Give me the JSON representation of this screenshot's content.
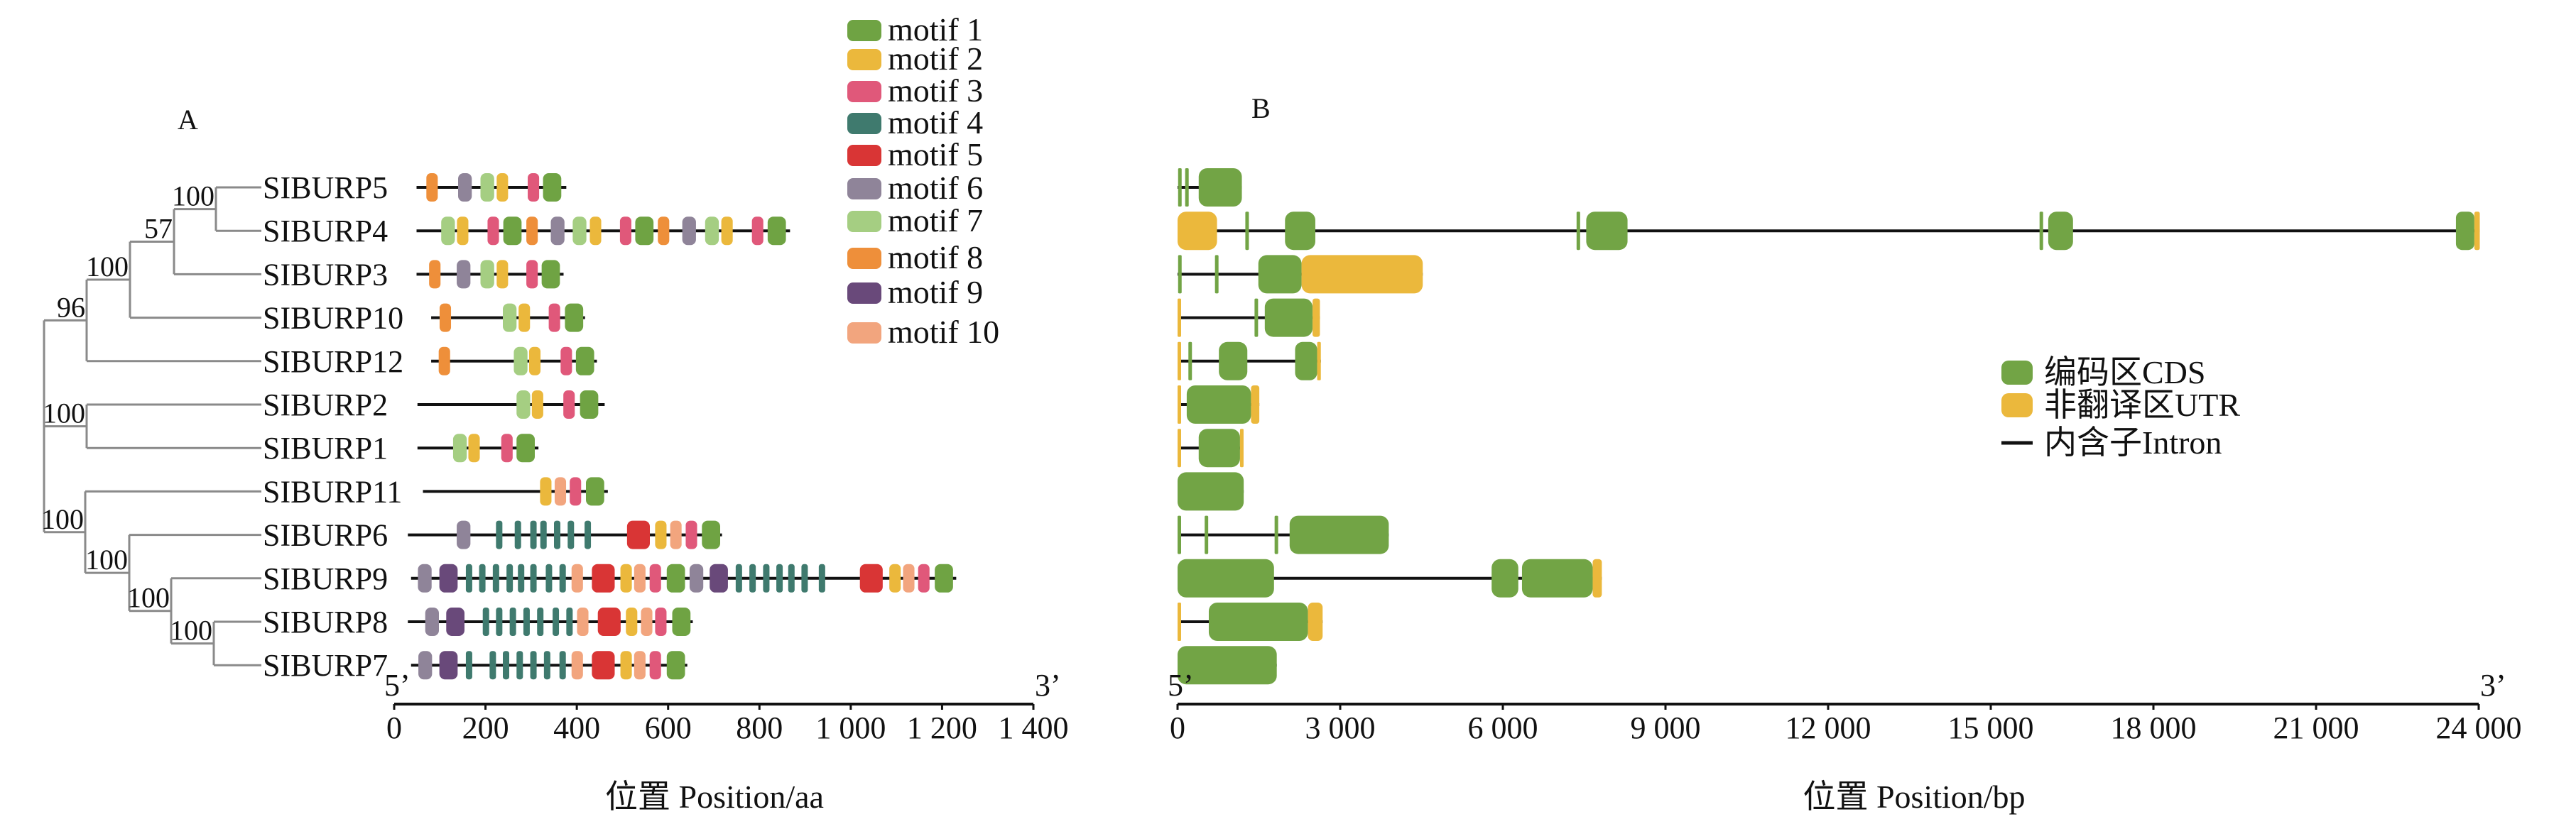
{
  "panel_a_label": "A",
  "panel_b_label": "B",
  "motif_legend": [
    {
      "label": "motif 1",
      "color": "#6fa343",
      "width_aa": 40
    },
    {
      "label": "motif 2",
      "color": "#ebb83c",
      "width_aa": 25
    },
    {
      "label": "motif 3",
      "color": "#e0587a",
      "width_aa": 25
    },
    {
      "label": "motif 4",
      "color": "#3f7a6e",
      "width_aa": 14
    },
    {
      "label": "motif 5",
      "color": "#d93535",
      "width_aa": 50
    },
    {
      "label": "motif 6",
      "color": "#8f8499",
      "width_aa": 30
    },
    {
      "label": "motif 7",
      "color": "#a5ce82",
      "width_aa": 30
    },
    {
      "label": "motif 8",
      "color": "#ee8f3a",
      "width_aa": 25
    },
    {
      "label": "motif 9",
      "color": "#69497a",
      "width_aa": 40
    },
    {
      "label": "motif 10",
      "color": "#f2a57e",
      "width_aa": 25
    }
  ],
  "gene_legend": [
    {
      "label": "编码区CDS",
      "type": "CDS",
      "color": "#72a445"
    },
    {
      "label": "非翻译区UTR",
      "type": "UTR",
      "color": "#ebb83c"
    },
    {
      "label": "内含子Intron",
      "type": "intron",
      "color": "#111111"
    }
  ],
  "tree": {
    "leaves": [
      "SIBURP5",
      "SIBURP4",
      "SIBURP3",
      "SIBURP10",
      "SIBURP12",
      "SIBURP2",
      "SIBURP1",
      "SIBURP11",
      "SIBURP6",
      "SIBURP9",
      "SIBURP8",
      "SIBURP7"
    ],
    "bootstrap": [
      "100",
      "57",
      "100",
      "96",
      "100",
      "100",
      "100",
      "100",
      "100"
    ]
  },
  "axis_a": {
    "start_label": "5’",
    "end_label": "3’",
    "min": 0,
    "max": 1400,
    "ticks": [
      0,
      200,
      400,
      600,
      800,
      1000,
      1200,
      1400
    ],
    "tick_labels": [
      "0",
      "200",
      "400",
      "600",
      "800",
      "1 000",
      "1 200",
      "1 400"
    ],
    "title": "位置 Position/aa"
  },
  "axis_b": {
    "start_label": "5’",
    "end_label": "3’",
    "min": 0,
    "max": 24000,
    "ticks": [
      0,
      3000,
      6000,
      9000,
      12000,
      15000,
      18000,
      21000,
      24000
    ],
    "tick_labels": [
      "0",
      "3 000",
      "6 000",
      "9 000",
      "12 000",
      "15 000",
      "18 000",
      "21 000",
      "24 000"
    ],
    "title": "位置 Position/bp"
  },
  "chart_data": [
    {
      "type": "motif-diagram",
      "xlabel": "位置 Position/aa",
      "xlim": [
        0,
        1400
      ],
      "proteins": [
        {
          "name": "SIBURP5",
          "span": [
            49,
            377
          ],
          "motifs": [
            [
              8,
              83
            ],
            [
              6,
              155
            ],
            [
              7,
              204
            ],
            [
              2,
              237
            ],
            [
              3,
              305
            ],
            [
              1,
              346
            ]
          ]
        },
        {
          "name": "SIBURP4",
          "span": [
            49,
            867
          ],
          "motifs": [
            [
              7,
              118
            ],
            [
              2,
              150
            ],
            [
              3,
              217
            ],
            [
              1,
              259
            ],
            [
              8,
              302
            ],
            [
              6,
              358
            ],
            [
              7,
              406
            ],
            [
              2,
              441
            ],
            [
              3,
              507
            ],
            [
              1,
              548
            ],
            [
              8,
              590
            ],
            [
              6,
              646
            ],
            [
              7,
              696
            ],
            [
              2,
              729
            ],
            [
              3,
              796
            ],
            [
              1,
              838
            ]
          ]
        },
        {
          "name": "SIBURP3",
          "span": [
            49,
            371
          ],
          "motifs": [
            [
              8,
              89
            ],
            [
              6,
              152
            ],
            [
              7,
              204
            ],
            [
              2,
              237
            ],
            [
              3,
              302
            ],
            [
              1,
              343
            ]
          ]
        },
        {
          "name": "SIBURP10",
          "span": [
            81,
            418
          ],
          "motifs": [
            [
              8,
              112
            ],
            [
              7,
              253
            ],
            [
              2,
              285
            ],
            [
              3,
              351
            ],
            [
              1,
              394
            ]
          ]
        },
        {
          "name": "SIBURP12",
          "span": [
            81,
            444
          ],
          "motifs": [
            [
              8,
              110
            ],
            [
              7,
              277
            ],
            [
              2,
              308
            ],
            [
              3,
              377
            ],
            [
              1,
              418
            ]
          ]
        },
        {
          "name": "SIBURP2",
          "span": [
            51,
            461
          ],
          "motifs": [
            [
              7,
              283
            ],
            [
              2,
              314
            ],
            [
              3,
              383
            ],
            [
              1,
              427
            ]
          ]
        },
        {
          "name": "SIBURP1",
          "span": [
            51,
            316
          ],
          "motifs": [
            [
              7,
              144
            ],
            [
              2,
              175
            ],
            [
              3,
              247
            ],
            [
              1,
              288
            ]
          ]
        },
        {
          "name": "SIBURP11",
          "span": [
            63,
            468
          ],
          "motifs": [
            [
              2,
              332
            ],
            [
              10,
              364
            ],
            [
              3,
              397
            ],
            [
              1,
              440
            ]
          ]
        },
        {
          "name": "SIBURP6",
          "span": [
            30,
            718
          ],
          "motifs": [
            [
              6,
              152
            ],
            [
              4,
              230
            ],
            [
              4,
              271
            ],
            [
              4,
              305
            ],
            [
              4,
              327
            ],
            [
              4,
              357
            ],
            [
              4,
              387
            ],
            [
              4,
              424
            ],
            [
              5,
              535
            ],
            [
              2,
              584
            ],
            [
              10,
              617
            ],
            [
              3,
              651
            ],
            [
              1,
              694
            ]
          ]
        },
        {
          "name": "SIBURP9",
          "span": [
            37,
            1231
          ],
          "motifs": [
            [
              6,
              67
            ],
            [
              9,
              119
            ],
            [
              4,
              164
            ],
            [
              4,
              193
            ],
            [
              4,
              223
            ],
            [
              4,
              253
            ],
            [
              4,
              278
            ],
            [
              4,
              305
            ],
            [
              4,
              339
            ],
            [
              4,
              369
            ],
            [
              10,
              401
            ],
            [
              5,
              458
            ],
            [
              2,
              508
            ],
            [
              10,
              538
            ],
            [
              3,
              572
            ],
            [
              1,
              617
            ],
            [
              6,
              662
            ],
            [
              9,
              711
            ],
            [
              4,
              755
            ],
            [
              4,
              785
            ],
            [
              4,
              815
            ],
            [
              4,
              844
            ],
            [
              4,
              870
            ],
            [
              4,
              899
            ],
            [
              4,
              937
            ],
            [
              5,
              1045
            ],
            [
              2,
              1097
            ],
            [
              10,
              1127
            ],
            [
              3,
              1160
            ],
            [
              1,
              1204
            ]
          ]
        },
        {
          "name": "SIBURP8",
          "span": [
            30,
            654
          ],
          "motifs": [
            [
              6,
              83
            ],
            [
              9,
              134
            ],
            [
              4,
              201
            ],
            [
              4,
              230
            ],
            [
              4,
              260
            ],
            [
              4,
              290
            ],
            [
              4,
              320
            ],
            [
              4,
              354
            ],
            [
              4,
              384
            ],
            [
              10,
              413
            ],
            [
              5,
              471
            ],
            [
              2,
              520
            ],
            [
              10,
              553
            ],
            [
              3,
              584
            ],
            [
              1,
              629
            ]
          ]
        },
        {
          "name": "SIBURP7",
          "span": [
            37,
            642
          ],
          "motifs": [
            [
              6,
              68
            ],
            [
              9,
              119
            ],
            [
              4,
              164
            ],
            [
              4,
              216
            ],
            [
              4,
              245
            ],
            [
              4,
              275
            ],
            [
              4,
              305
            ],
            [
              4,
              335
            ],
            [
              4,
              369
            ],
            [
              10,
              401
            ],
            [
              5,
              458
            ],
            [
              2,
              508
            ],
            [
              10,
              538
            ],
            [
              3,
              572
            ],
            [
              1,
              617
            ]
          ]
        }
      ]
    },
    {
      "type": "gene-structure",
      "xlabel": "位置 Position/bp",
      "xlim": [
        0,
        24000
      ],
      "genes": [
        {
          "name": "SIBURP5",
          "length": 1186,
          "features": [
            [
              "CDS",
              10,
              60
            ],
            [
              "CDS",
              140,
              190
            ],
            [
              "CDS",
              390,
              1186
            ]
          ]
        },
        {
          "name": "SIBURP4",
          "length": 24020,
          "features": [
            [
              "UTR",
              0,
              728
            ],
            [
              "CDS",
              1250,
              1300
            ],
            [
              "CDS",
              1982,
              2541
            ],
            [
              "CDS",
              7360,
              7410
            ],
            [
              "CDS",
              7538,
              8300
            ],
            [
              "CDS",
              15900,
              15950
            ],
            [
              "CDS",
              16060,
              16517
            ],
            [
              "CDS",
              23580,
              23920
            ],
            [
              "UTR",
              23920,
              24020
            ]
          ]
        },
        {
          "name": "SIBURP3",
          "length": 4523,
          "features": [
            [
              "CDS",
              10,
              60
            ],
            [
              "CDS",
              690,
              740
            ],
            [
              "CDS",
              1490,
              2287
            ],
            [
              "UTR",
              2287,
              4523
            ]
          ]
        },
        {
          "name": "SIBURP10",
          "length": 2626,
          "features": [
            [
              "UTR",
              0,
              50
            ],
            [
              "CDS",
              1420,
              1470
            ],
            [
              "CDS",
              1609,
              2490
            ],
            [
              "UTR",
              2490,
              2626
            ]
          ]
        },
        {
          "name": "SIBURP12",
          "length": 2643,
          "features": [
            [
              "UTR",
              0,
              40
            ],
            [
              "CDS",
              200,
              250
            ],
            [
              "CDS",
              762,
              1287
            ],
            [
              "CDS",
              2168,
              2575
            ],
            [
              "UTR",
              2575,
              2643
            ]
          ]
        },
        {
          "name": "SIBURP2",
          "length": 1508,
          "features": [
            [
              "UTR",
              0,
              40
            ],
            [
              "CDS",
              169,
              1355
            ],
            [
              "UTR",
              1355,
              1508
            ]
          ]
        },
        {
          "name": "SIBURP1",
          "length": 1200,
          "features": [
            [
              "UTR",
              0,
              40
            ],
            [
              "CDS",
              390,
              1152
            ],
            [
              "UTR",
              1152,
              1200
            ]
          ]
        },
        {
          "name": "SIBURP11",
          "length": 1220,
          "features": [
            [
              "CDS",
              0,
              1220
            ]
          ]
        },
        {
          "name": "SIBURP6",
          "length": 3896,
          "features": [
            [
              "CDS",
              0,
              40
            ],
            [
              "CDS",
              500,
              550
            ],
            [
              "CDS",
              1790,
              1840
            ],
            [
              "CDS",
              2067,
              3896
            ]
          ]
        },
        {
          "name": "SIBURP9",
          "length": 7826,
          "features": [
            [
              "CDS",
              0,
              1779
            ],
            [
              "CDS",
              5793,
              6285
            ],
            [
              "CDS",
              6353,
              7657
            ],
            [
              "UTR",
              7657,
              7826
            ]
          ]
        },
        {
          "name": "SIBURP8",
          "length": 2676,
          "features": [
            [
              "UTR",
              0,
              40
            ],
            [
              "CDS",
              576,
              2405
            ],
            [
              "UTR",
              2405,
              2676
            ]
          ]
        },
        {
          "name": "SIBURP7",
          "length": 1830,
          "features": [
            [
              "CDS",
              0,
              1830
            ]
          ]
        }
      ]
    }
  ]
}
